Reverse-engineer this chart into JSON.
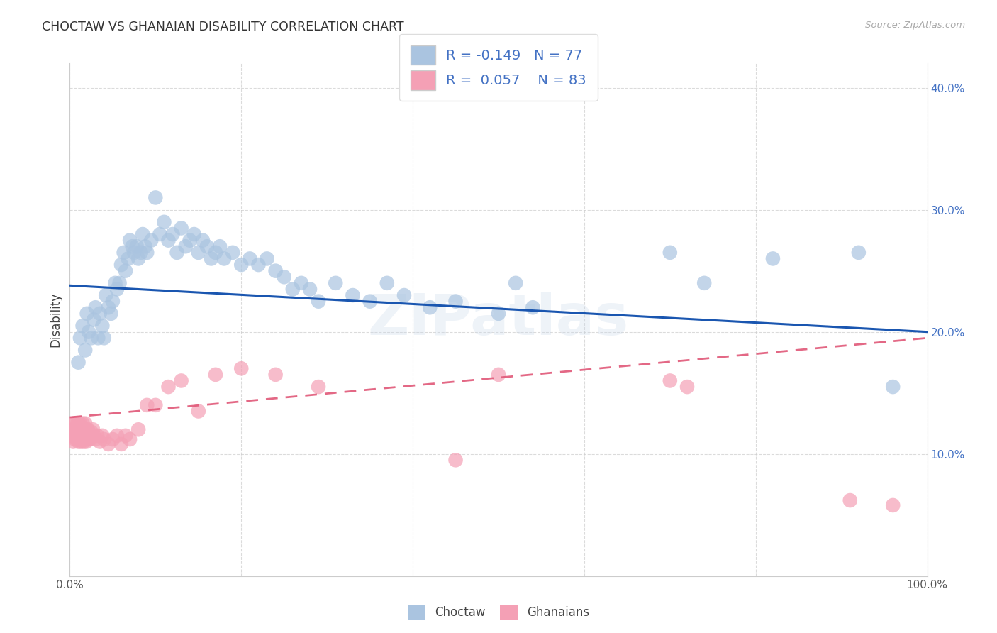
{
  "title": "CHOCTAW VS GHANAIAN DISABILITY CORRELATION CHART",
  "source": "Source: ZipAtlas.com",
  "ylabel": "Disability",
  "xlim": [
    0.0,
    1.0
  ],
  "ylim": [
    0.0,
    0.42
  ],
  "xticks": [
    0.0,
    0.2,
    0.4,
    0.6,
    0.8,
    1.0
  ],
  "xticklabels": [
    "0.0%",
    "",
    "",
    "",
    "",
    "100.0%"
  ],
  "yticks": [
    0.0,
    0.1,
    0.2,
    0.3,
    0.4
  ],
  "yticklabels": [
    "",
    "10.0%",
    "20.0%",
    "30.0%",
    "40.0%"
  ],
  "choctaw_color": "#aac4e0",
  "ghanaian_color": "#f4a0b5",
  "choctaw_line_color": "#1a56b0",
  "ghanaian_line_color": "#e05878",
  "R_choctaw": -0.149,
  "N_choctaw": 77,
  "R_ghanaian": 0.057,
  "N_ghanaian": 83,
  "watermark": "ZIPatlas",
  "background_color": "#ffffff",
  "grid_color": "#cccccc",
  "choctaw_x": [
    0.01,
    0.012,
    0.015,
    0.018,
    0.02,
    0.022,
    0.025,
    0.028,
    0.03,
    0.033,
    0.035,
    0.038,
    0.04,
    0.042,
    0.045,
    0.048,
    0.05,
    0.053,
    0.055,
    0.058,
    0.06,
    0.063,
    0.065,
    0.068,
    0.07,
    0.073,
    0.075,
    0.078,
    0.08,
    0.083,
    0.085,
    0.088,
    0.09,
    0.095,
    0.1,
    0.105,
    0.11,
    0.115,
    0.12,
    0.125,
    0.13,
    0.135,
    0.14,
    0.145,
    0.15,
    0.155,
    0.16,
    0.165,
    0.17,
    0.175,
    0.18,
    0.19,
    0.2,
    0.21,
    0.22,
    0.23,
    0.24,
    0.25,
    0.26,
    0.27,
    0.28,
    0.29,
    0.31,
    0.33,
    0.35,
    0.37,
    0.39,
    0.42,
    0.45,
    0.5,
    0.52,
    0.54,
    0.7,
    0.74,
    0.82,
    0.92,
    0.96
  ],
  "choctaw_y": [
    0.175,
    0.195,
    0.205,
    0.185,
    0.215,
    0.2,
    0.195,
    0.21,
    0.22,
    0.195,
    0.215,
    0.205,
    0.195,
    0.23,
    0.22,
    0.215,
    0.225,
    0.24,
    0.235,
    0.24,
    0.255,
    0.265,
    0.25,
    0.26,
    0.275,
    0.27,
    0.265,
    0.27,
    0.26,
    0.265,
    0.28,
    0.27,
    0.265,
    0.275,
    0.31,
    0.28,
    0.29,
    0.275,
    0.28,
    0.265,
    0.285,
    0.27,
    0.275,
    0.28,
    0.265,
    0.275,
    0.27,
    0.26,
    0.265,
    0.27,
    0.26,
    0.265,
    0.255,
    0.26,
    0.255,
    0.26,
    0.25,
    0.245,
    0.235,
    0.24,
    0.235,
    0.225,
    0.24,
    0.23,
    0.225,
    0.24,
    0.23,
    0.22,
    0.225,
    0.215,
    0.24,
    0.22,
    0.265,
    0.24,
    0.26,
    0.265,
    0.155
  ],
  "ghanaian_x": [
    0.002,
    0.003,
    0.004,
    0.005,
    0.005,
    0.006,
    0.006,
    0.007,
    0.007,
    0.007,
    0.008,
    0.008,
    0.008,
    0.009,
    0.009,
    0.01,
    0.01,
    0.01,
    0.01,
    0.011,
    0.011,
    0.011,
    0.012,
    0.012,
    0.012,
    0.013,
    0.013,
    0.013,
    0.014,
    0.014,
    0.015,
    0.015,
    0.015,
    0.015,
    0.016,
    0.016,
    0.016,
    0.017,
    0.017,
    0.018,
    0.018,
    0.018,
    0.019,
    0.019,
    0.02,
    0.02,
    0.021,
    0.021,
    0.022,
    0.022,
    0.023,
    0.024,
    0.025,
    0.026,
    0.027,
    0.028,
    0.03,
    0.032,
    0.035,
    0.038,
    0.04,
    0.045,
    0.05,
    0.055,
    0.06,
    0.065,
    0.07,
    0.08,
    0.09,
    0.1,
    0.115,
    0.13,
    0.15,
    0.17,
    0.2,
    0.24,
    0.29,
    0.45,
    0.5,
    0.7,
    0.72,
    0.91,
    0.96
  ],
  "ghanaian_y": [
    0.115,
    0.12,
    0.11,
    0.115,
    0.125,
    0.118,
    0.112,
    0.115,
    0.12,
    0.125,
    0.118,
    0.112,
    0.12,
    0.115,
    0.125,
    0.11,
    0.115,
    0.12,
    0.125,
    0.112,
    0.118,
    0.122,
    0.115,
    0.12,
    0.125,
    0.11,
    0.115,
    0.12,
    0.118,
    0.122,
    0.112,
    0.115,
    0.12,
    0.125,
    0.11,
    0.115,
    0.12,
    0.112,
    0.118,
    0.115,
    0.12,
    0.125,
    0.11,
    0.115,
    0.112,
    0.118,
    0.115,
    0.12,
    0.112,
    0.118,
    0.115,
    0.112,
    0.118,
    0.115,
    0.12,
    0.115,
    0.112,
    0.115,
    0.11,
    0.115,
    0.112,
    0.108,
    0.112,
    0.115,
    0.108,
    0.115,
    0.112,
    0.12,
    0.14,
    0.14,
    0.155,
    0.16,
    0.135,
    0.165,
    0.17,
    0.165,
    0.155,
    0.095,
    0.165,
    0.16,
    0.155,
    0.062,
    0.058
  ],
  "choctaw_line_y0": 0.238,
  "choctaw_line_y1": 0.2,
  "ghanaian_line_y0": 0.13,
  "ghanaian_line_y1": 0.195
}
